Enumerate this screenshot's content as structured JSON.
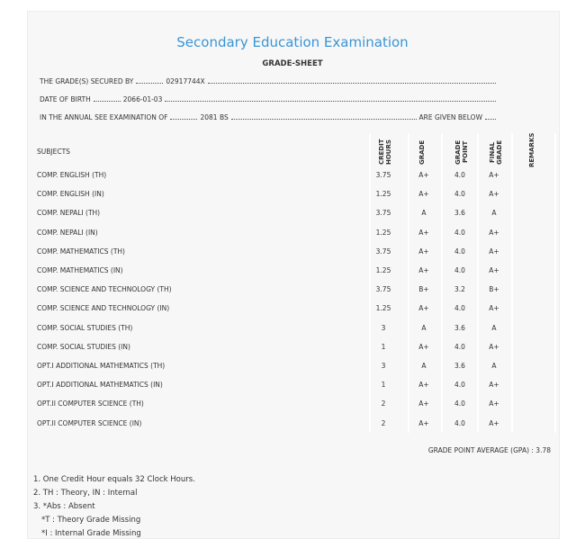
{
  "header": {
    "title": "Secondary Education Examination",
    "subtitle": "GRADE-SHEET"
  },
  "info": [
    {
      "label": "THE GRADE(S) SECURED BY",
      "value": "02917744X"
    },
    {
      "label": "DATE OF BIRTH",
      "value": "2066-01-03"
    },
    {
      "label": "IN THE ANNUAL SEE EXAMINATION OF",
      "value": "2081 BS",
      "suffix": "ARE GIVEN BELOW"
    }
  ],
  "table": {
    "columns": [
      "SUBJECTS",
      "CREDIT HOURS",
      "GRADE",
      "GRADE POINT",
      "FINAL GRADE",
      "REMARKS"
    ],
    "rows": [
      [
        "COMP. ENGLISH (TH)",
        "3.75",
        "A+",
        "4.0",
        "A+"
      ],
      [
        "COMP. ENGLISH (IN)",
        "1.25",
        "A+",
        "4.0",
        "A+"
      ],
      [
        "COMP. NEPALI (TH)",
        "3.75",
        "A",
        "3.6",
        "A"
      ],
      [
        "COMP. NEPALI (IN)",
        "1.25",
        "A+",
        "4.0",
        "A+"
      ],
      [
        "COMP. MATHEMATICS (TH)",
        "3.75",
        "A+",
        "4.0",
        "A+"
      ],
      [
        "COMP. MATHEMATICS (IN)",
        "1.25",
        "A+",
        "4.0",
        "A+"
      ],
      [
        "COMP. SCIENCE AND TECHNOLOGY (TH)",
        "3.75",
        "B+",
        "3.2",
        "B+"
      ],
      [
        "COMP. SCIENCE AND TECHNOLOGY (IN)",
        "1.25",
        "A+",
        "4.0",
        "A+"
      ],
      [
        "COMP. SOCIAL STUDIES (TH)",
        "3",
        "A",
        "3.6",
        "A"
      ],
      [
        "COMP. SOCIAL STUDIES (IN)",
        "1",
        "A+",
        "4.0",
        "A+"
      ],
      [
        "OPT.I ADDITIONAL MATHEMATICS (TH)",
        "3",
        "A",
        "3.6",
        "A"
      ],
      [
        "OPT.I ADDITIONAL MATHEMATICS (IN)",
        "1",
        "A+",
        "4.0",
        "A+"
      ],
      [
        "OPT.II COMPUTER SCIENCE (TH)",
        "2",
        "A+",
        "4.0",
        "A+"
      ],
      [
        "OPT.II COMPUTER SCIENCE (IN)",
        "2",
        "A+",
        "4.0",
        "A+"
      ]
    ]
  },
  "gpa": "GRADE POINT AVERAGE (GPA) : 3.78",
  "notes": [
    "1. One Credit Hour equals 32 Clock Hours.",
    "2. TH : Theory, IN : Internal",
    "3. *Abs : Absent",
    "*T : Theory Grade Missing",
    "*I : Internal Grade Missing"
  ]
}
